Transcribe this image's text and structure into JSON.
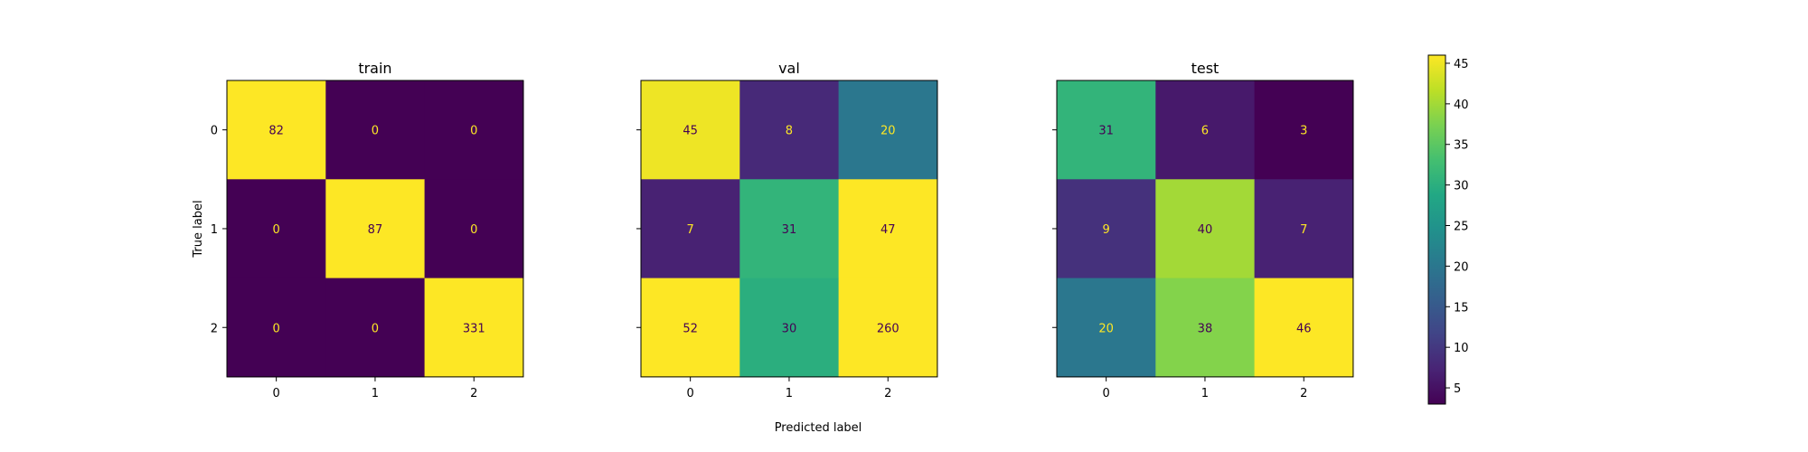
{
  "chart_data": {
    "type": "heatmap",
    "figure_type": "confusion-matrix-grid",
    "shared_xlabel": "Predicted label",
    "shared_ylabel": "True label",
    "colormap": "viridis",
    "colorbar": {
      "min": 3,
      "max": 46,
      "ticks": [
        5,
        10,
        15,
        20,
        25,
        30,
        35,
        40,
        45
      ]
    },
    "panels": [
      {
        "title": "train",
        "x_ticks": [
          "0",
          "1",
          "2"
        ],
        "y_ticks": [
          "0",
          "1",
          "2"
        ],
        "matrix": [
          [
            82,
            0,
            0
          ],
          [
            0,
            87,
            0
          ],
          [
            0,
            0,
            331
          ]
        ]
      },
      {
        "title": "val",
        "x_ticks": [
          "0",
          "1",
          "2"
        ],
        "y_ticks": [
          "0",
          "1",
          "2"
        ],
        "matrix": [
          [
            45,
            8,
            20
          ],
          [
            7,
            31,
            47
          ],
          [
            52,
            30,
            260
          ]
        ]
      },
      {
        "title": "test",
        "x_ticks": [
          "0",
          "1",
          "2"
        ],
        "y_ticks": [
          "0",
          "1",
          "2"
        ],
        "matrix": [
          [
            31,
            6,
            3
          ],
          [
            9,
            40,
            7
          ],
          [
            20,
            38,
            46
          ]
        ]
      }
    ],
    "text_colors": {
      "light": "#fde725",
      "dark": "#440154"
    }
  }
}
